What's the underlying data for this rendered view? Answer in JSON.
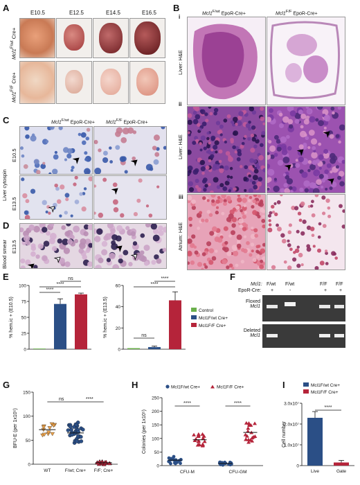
{
  "panels": {
    "A": {
      "label": "A",
      "stages": [
        "E10.5",
        "E12.5",
        "E14.5",
        "E16.5"
      ],
      "row_labels": [
        "Mcl1F/wt Cre+",
        "Mcl1F/F Cre+"
      ]
    },
    "B": {
      "label": "B",
      "col_titles": [
        "Mcl1F/wt EpoR-Cre+",
        "Mcl1F/F EpoR-Cre+"
      ],
      "rows": [
        {
          "num": "i",
          "tissue": "Liver: H&E"
        },
        {
          "num": "ii",
          "tissue": "Liver: H&E"
        },
        {
          "num": "iii",
          "tissue": "Atrium: H&E"
        }
      ]
    },
    "C": {
      "label": "C",
      "col_titles": [
        "Mcl1F/wt EpoR-Cre+",
        "Mcl1F/F EpoR-Cre+"
      ],
      "rows": [
        "E10.5",
        "E13.5"
      ],
      "side": "Liver cytospin"
    },
    "D": {
      "label": "D",
      "rows": [
        "E13.5"
      ],
      "side": "Blood smear"
    },
    "E": {
      "label": "E"
    },
    "F": {
      "label": "F",
      "geno_header": "Mcl1:",
      "genotypes": [
        "F/wt",
        "F/wt",
        "F/F",
        "F/F"
      ],
      "cre_header": "EpoR-Cre:",
      "cre": [
        "+",
        "-",
        "+",
        "+"
      ],
      "bands": [
        "Floxed Mcl1",
        "Deleted Mcl1"
      ]
    },
    "G": {
      "label": "G"
    },
    "H": {
      "label": "H"
    },
    "I": {
      "label": "I"
    }
  },
  "legend_E": [
    {
      "name": "Control",
      "color": "#6ab04c"
    },
    {
      "name": "Mcl1F/wt Cre+",
      "color": "#2b4f86"
    },
    {
      "name": "Mcl1F/F Cre+",
      "color": "#b5243a"
    }
  ],
  "chart_data": [
    {
      "id": "E-left",
      "type": "bar",
      "ylabel": "% hem.ic + (E10.5)",
      "ylim": [
        0,
        100
      ],
      "yticks": [
        0,
        25,
        50,
        75,
        100
      ],
      "categories": [
        "Control",
        "Mcl1F/wt Cre+",
        "Mcl1F/F Cre+"
      ],
      "values": [
        1,
        71,
        86
      ],
      "errors": [
        0,
        8,
        2
      ],
      "annotations": [
        "****",
        "****",
        "ns"
      ]
    },
    {
      "id": "E-right",
      "type": "bar",
      "ylabel": "% hem.ic + (E13.5)",
      "ylim": [
        0,
        60
      ],
      "yticks": [
        0,
        20,
        40,
        60
      ],
      "categories": [
        "Control",
        "Mcl1F/wt Cre+",
        "Mcl1F/F Cre+"
      ],
      "values": [
        1,
        2,
        46
      ],
      "errors": [
        0,
        1,
        8
      ],
      "annotations": [
        "ns",
        "****",
        "****"
      ]
    },
    {
      "id": "G",
      "type": "scatter",
      "ylabel": "BFU-E (per 1x10⁵)",
      "ylim": [
        0,
        150
      ],
      "yticks": [
        0,
        50,
        100,
        150
      ],
      "categories": [
        "WT",
        "F/wt; Cre+",
        "F/F; Cre+"
      ],
      "means": [
        72,
        65,
        3
      ],
      "annotations": [
        "ns",
        "****"
      ]
    },
    {
      "id": "H",
      "type": "scatter",
      "ylabel": "Colonies (per 1x10⁵)",
      "ylim": [
        0,
        250
      ],
      "yticks": [
        0,
        50,
        100,
        150,
        200,
        250
      ],
      "categories": [
        "CFU-M",
        "CFU-GM"
      ],
      "series": [
        {
          "name": "Mcl1F/wt Cre+",
          "means": [
            20,
            8
          ]
        },
        {
          "name": "Mcl1F/F Cre+",
          "means": [
            95,
            122
          ]
        }
      ],
      "annotations": [
        "****",
        "****"
      ]
    },
    {
      "id": "I",
      "type": "bar",
      "ylabel": "Cell number",
      "ylim": [
        0,
        30000000
      ],
      "yticks": [
        "0",
        "1.0x10⁷",
        "2.0x10⁷",
        "3.0x10⁷"
      ],
      "categories": [
        "Live",
        "Gate"
      ],
      "values": [
        23000000,
        1500000
      ],
      "errors": [
        3000000,
        1000000
      ],
      "series": [
        {
          "name": "Mcl1F/wt Cre+",
          "color": "#2b4f86"
        },
        {
          "name": "Mcl1F/F Cre+",
          "color": "#b5243a"
        }
      ],
      "annotations": [
        "****"
      ]
    }
  ]
}
